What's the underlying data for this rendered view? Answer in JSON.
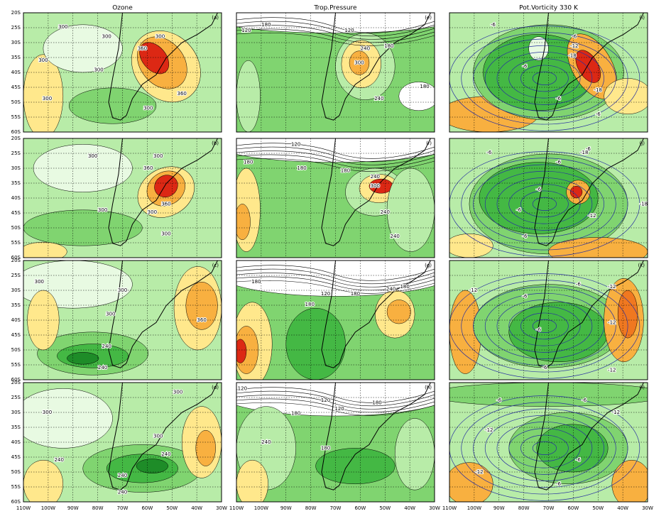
{
  "columns": [
    "Ozone",
    "Trop.Pressure",
    "Pot.Vorticity 330 K"
  ],
  "y_axis_labels": [
    "20S",
    "25S",
    "30S",
    "35S",
    "40S",
    "45S",
    "50S",
    "55S",
    "60S"
  ],
  "x_axis_labels": [
    "110W",
    "100W",
    "90W",
    "80W",
    "70W",
    "60W",
    "50W",
    "40W",
    "30W"
  ],
  "panels": [
    {
      "letter": "(a)",
      "contour_labels": [
        "300",
        "300",
        "300",
        "300",
        "300",
        "360",
        "300",
        "360",
        "300"
      ]
    },
    {
      "letter": "(b)",
      "contour_labels": [
        "300",
        "300",
        "360",
        "300",
        "300",
        "360",
        "300"
      ]
    },
    {
      "letter": "(c)",
      "contour_labels": [
        "300",
        "300",
        "300",
        "360",
        "240",
        "240"
      ]
    },
    {
      "letter": "(d)",
      "contour_labels": [
        "300",
        "300",
        "300",
        "240",
        "240",
        "240",
        "240"
      ]
    },
    {
      "letter": "(e)",
      "contour_labels": [
        "120",
        "180",
        "120",
        "180",
        "240",
        "300",
        "240",
        "180"
      ]
    },
    {
      "letter": "(f)",
      "contour_labels": [
        "120",
        "180",
        "180",
        "180",
        "240",
        "300",
        "240",
        "240"
      ]
    },
    {
      "letter": "(g)",
      "contour_labels": [
        "180",
        "120",
        "180",
        "180",
        "240",
        "180"
      ]
    },
    {
      "letter": "(h)",
      "contour_labels": [
        "120",
        "120",
        "120",
        "180",
        "180",
        "180",
        "240"
      ]
    },
    {
      "letter": "(i)",
      "contour_labels": [
        "-6",
        "-6",
        "-12",
        "-18",
        "-6",
        "-18",
        "-6",
        "-6"
      ]
    },
    {
      "letter": "(j)",
      "contour_labels": [
        "-6",
        "-6",
        "-6",
        "-18",
        "-6",
        "-6",
        "-12",
        "-18",
        "-6"
      ]
    },
    {
      "letter": "(k)",
      "contour_labels": [
        "-12",
        "-6",
        "-6",
        "-12",
        "-6",
        "-12",
        "-6",
        "-12"
      ]
    },
    {
      "letter": "(l)",
      "contour_labels": [
        "-6",
        "-6",
        "-12",
        "-12",
        "-6",
        "-12",
        "-6"
      ]
    }
  ]
}
